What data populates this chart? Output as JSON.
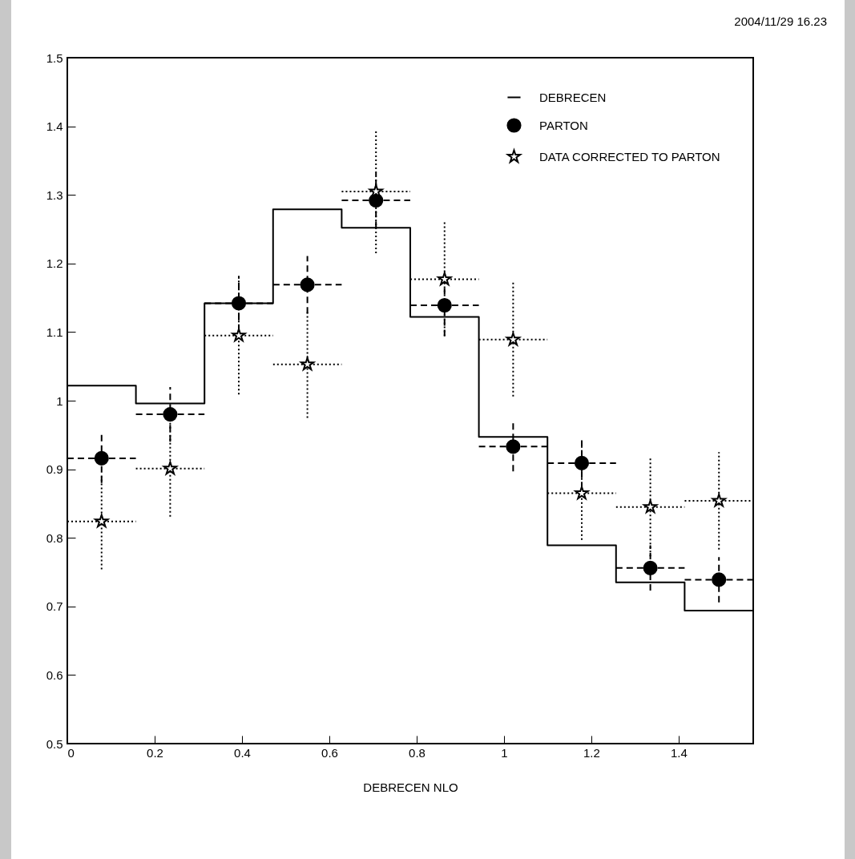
{
  "chart_data": {
    "type": "scatter",
    "xlabel": "DEBRECEN NLO",
    "annotations": [
      "2004/11/29  16.23"
    ],
    "xlim": [
      0,
      1.5708
    ],
    "ylim": [
      0.5,
      1.5
    ],
    "xticks": [
      0,
      0.2,
      0.4,
      0.6,
      0.8,
      1,
      1.2,
      1.4
    ],
    "yticks": [
      0.5,
      0.6,
      0.7,
      0.8,
      0.9,
      1,
      1.1,
      1.2,
      1.3,
      1.4,
      1.5
    ],
    "x": [
      0.0785,
      0.2356,
      0.3927,
      0.5498,
      0.7069,
      0.8639,
      1.021,
      1.1781,
      1.3352,
      1.4923
    ],
    "legend": "top right",
    "grid": false,
    "series": [
      {
        "name": "DEBRECEN",
        "type": "step",
        "color": "#000000",
        "line_style": "solid",
        "marker": "none",
        "x": [
          0,
          0.1571,
          0.3142,
          0.4712,
          0.6283,
          0.7854,
          0.9425,
          1.0996,
          1.2566,
          1.4137,
          1.5708
        ],
        "values": [
          1.022,
          0.996,
          1.142,
          1.279,
          1.252,
          1.122,
          0.947,
          0.789,
          0.735,
          0.694,
          0.694
        ]
      },
      {
        "name": "PARTON",
        "color": "#000000",
        "marker": "circle",
        "line_style": "dashed",
        "values": [
          0.916,
          0.98,
          1.142,
          1.169,
          1.292,
          1.139,
          0.933,
          0.909,
          0.756,
          0.739
        ],
        "errors": [
          0.036,
          0.04,
          0.04,
          0.042,
          0.04,
          0.045,
          0.036,
          0.037,
          0.033,
          0.033
        ],
        "xerrors": [
          0.0785,
          0.0785,
          0.0785,
          0.0785,
          0.0785,
          0.0785,
          0.0785,
          0.0785,
          0.0785,
          0.0785
        ]
      },
      {
        "name": "DATA CORRECTED TO PARTON",
        "color": "#000000",
        "marker": "star",
        "line_style": "dotted",
        "values": [
          0.824,
          0.901,
          1.095,
          1.053,
          1.305,
          1.177,
          1.089,
          0.865,
          0.845,
          0.854
        ],
        "errors": [
          0.07,
          0.07,
          0.086,
          0.078,
          0.09,
          0.083,
          0.083,
          0.068,
          0.072,
          0.071
        ],
        "xerrors": [
          0.0785,
          0.0785,
          0.0785,
          0.0785,
          0.0785,
          0.0785,
          0.0785,
          0.0785,
          0.0785,
          0.0785
        ]
      }
    ]
  }
}
